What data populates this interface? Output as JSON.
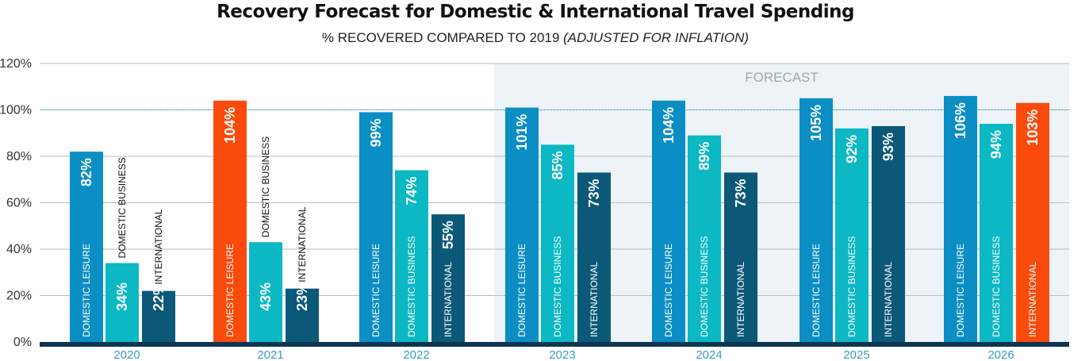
{
  "chart_data": {
    "type": "bar",
    "title": "Recovery Forecast for Domestic & International Travel Spending",
    "subtitle": "% RECOVERED COMPARED TO 2019",
    "subtitle_note": "(ADJUSTED FOR INFLATION)",
    "forecast_label": "FORECAST",
    "forecast_start": "2023",
    "categories": [
      "2020",
      "2021",
      "2022",
      "2023",
      "2024",
      "2025",
      "2026"
    ],
    "series": [
      {
        "name": "DOMESTIC LEISURE",
        "color": "#0a8ec4",
        "values": [
          82,
          104,
          99,
          101,
          104,
          105,
          106
        ],
        "value_labels": [
          "82%",
          "104%",
          "99%",
          "101%",
          "104%",
          "105%",
          "106%"
        ]
      },
      {
        "name": "DOMESTIC BUSINESS",
        "color": "#0bb8c4",
        "values": [
          34,
          43,
          74,
          85,
          89,
          92,
          94
        ],
        "value_labels": [
          "34%",
          "43%",
          "74%",
          "85%",
          "89%",
          "92%",
          "94%"
        ]
      },
      {
        "name": "INTERNATIONAL",
        "color": "#0b5878",
        "values": [
          22,
          23,
          55,
          73,
          73,
          93,
          103
        ],
        "value_labels": [
          "22%",
          "23%",
          "55%",
          "73%",
          "73%",
          "93%",
          "103%"
        ]
      }
    ],
    "highlight": {
      "color": "#fa4a0c",
      "points": [
        {
          "category": "2021",
          "series": "DOMESTIC LEISURE"
        },
        {
          "category": "2026",
          "series": "INTERNATIONAL"
        }
      ]
    },
    "y_ticks": [
      "0%",
      "20%",
      "40%",
      "60%",
      "80%",
      "100%",
      "120%"
    ],
    "ylim": [
      0,
      120
    ],
    "reference_line": 100,
    "xlabel": "",
    "ylabel": ""
  }
}
